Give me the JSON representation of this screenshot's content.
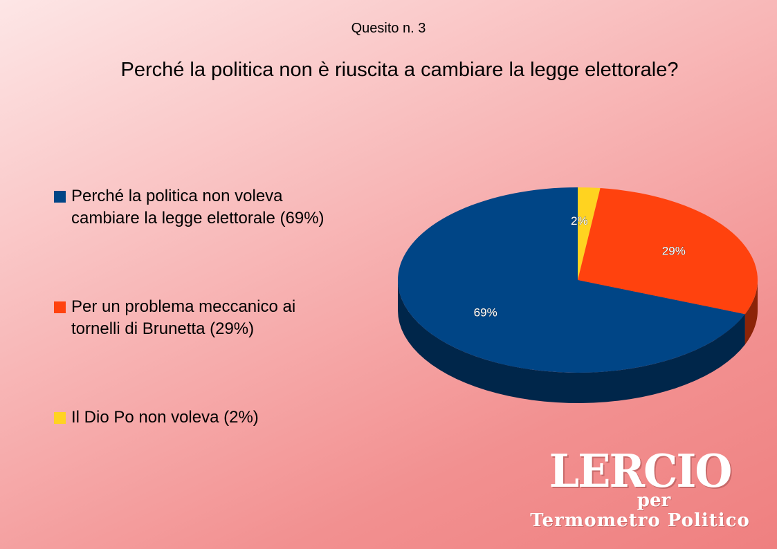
{
  "chart_data": {
    "type": "pie",
    "subtitle": "Quesito n. 3",
    "title": "Perché la politica non è riuscita a cambiare la legge elettorale?",
    "legend_position": "left",
    "slices": [
      {
        "label": "Perché la politica non voleva\ncambiare la legge elettorale (69%)",
        "value": 69,
        "value_label": "69%",
        "color": "#004586"
      },
      {
        "label": "Per un problema meccanico ai\ntornelli di Brunetta (29%)",
        "value": 29,
        "value_label": "29%",
        "color": "#ff420e"
      },
      {
        "label": "Il Dio Po non voleva (2%)",
        "value": 2,
        "value_label": "2%",
        "color": "#ffd320"
      }
    ]
  },
  "logo": {
    "main": "LERCIO",
    "per": "per",
    "sub": "Termometro Politico"
  }
}
